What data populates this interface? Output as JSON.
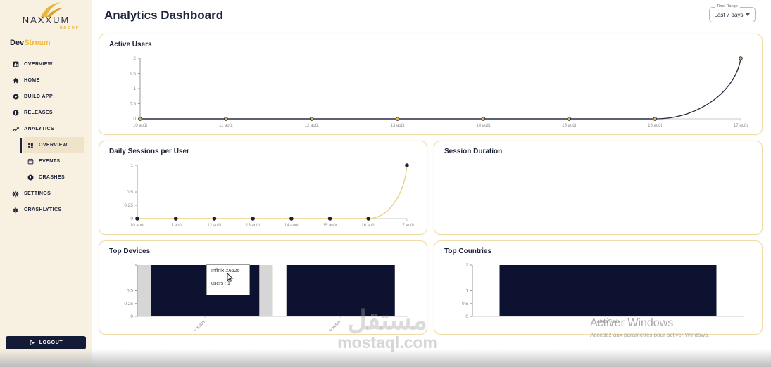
{
  "app": {
    "title": "Analytics Dashboard",
    "time_range": {
      "label": "Time Range",
      "value": "Last 7 days"
    }
  },
  "logo": {
    "name": "NAXXUM",
    "sub": "GROUP"
  },
  "brand": {
    "dev": "Dev",
    "stream": "Stream"
  },
  "sidebar": {
    "items": [
      {
        "label": "OVERVIEW"
      },
      {
        "label": "HOME"
      },
      {
        "label": "BUILD APP"
      },
      {
        "label": "RELEASES"
      },
      {
        "label": "ANALYTICS"
      },
      {
        "label": "OVERVIEW",
        "sub": true,
        "active": true
      },
      {
        "label": "EVENTS",
        "sub": true
      },
      {
        "label": "CRASHES",
        "sub": true
      },
      {
        "label": "SETTINGS"
      },
      {
        "label": "CRASHLYTICS"
      }
    ],
    "logout_label": "LOGOUT"
  },
  "colors": {
    "accent_gold": "#e9b53c",
    "navy": "#1d2339",
    "sidebar_bg": "#f8f0e1",
    "card_border": "#f0dca6",
    "bar": "#0d1230",
    "highlight": "#d6d6d6"
  },
  "chart_data": [
    {
      "id": "active_users",
      "type": "line",
      "title": "Active Users",
      "x": [
        "10 août",
        "11 août",
        "12 août",
        "13 août",
        "14 août",
        "15 août",
        "16 août",
        "17 août"
      ],
      "values": [
        0,
        0,
        0,
        0,
        0,
        0,
        0,
        2
      ],
      "yticks": [
        0,
        0.5,
        1,
        1.5,
        2
      ],
      "ylim": [
        0,
        2
      ],
      "line_color": "#2b2f40",
      "point_fill": "#e9b53c",
      "point_stroke": "#2b2f40"
    },
    {
      "id": "daily_sessions",
      "type": "line",
      "title": "Daily Sessions per User",
      "x": [
        "10 août",
        "11 août",
        "12 août",
        "13 août",
        "14 août",
        "15 août",
        "16 août",
        "17 août"
      ],
      "values": [
        0,
        0,
        0,
        0,
        0,
        0,
        0,
        1
      ],
      "yticks": [
        0,
        0.25,
        0.5,
        1
      ],
      "ylim": [
        0,
        1
      ],
      "line_color": "#eecf7e",
      "point_fill": "#1d2339",
      "point_stroke": "#1d2339"
    },
    {
      "id": "session_duration",
      "type": "empty",
      "title": "Session Duration"
    },
    {
      "id": "top_devices",
      "type": "bar",
      "title": "Top Devices",
      "categories": [
        "Infinix X6525",
        "Infinix X6528"
      ],
      "values": [
        1,
        1
      ],
      "yticks": [
        0,
        0.25,
        0.5,
        1
      ],
      "ylim": [
        0,
        1
      ],
      "bar_color": "#0d1230",
      "highlight_index": 0,
      "highlight_color": "#d6d6d6",
      "label_rotation": -45,
      "tooltip": {
        "line1": "Infinix X6525",
        "line2": "users : 1"
      }
    },
    {
      "id": "top_countries",
      "type": "bar",
      "title": "Top Countries",
      "categories": [
        "Africa/Tunis"
      ],
      "values": [
        2
      ],
      "yticks": [
        0,
        0.5,
        1,
        2
      ],
      "ylim": [
        0,
        2
      ],
      "bar_color": "#0d1230",
      "label_rotation": 0
    }
  ],
  "watermark": {
    "arabic": "مستقل",
    "domain": "mostaql.com"
  },
  "windows_activation": {
    "line1": "Activer Windows",
    "line2": "Accédez aux paramètres pour activer Windows."
  }
}
